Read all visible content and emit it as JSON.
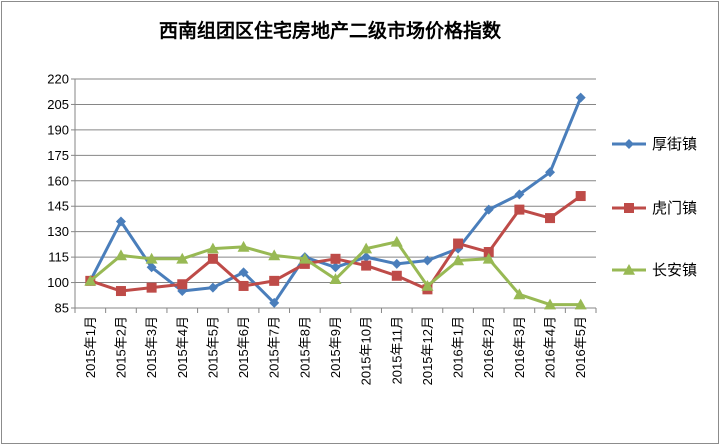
{
  "chart_data": {
    "type": "line",
    "title": "西南组团区住宅房地产二级市场价格指数",
    "xlabel": "",
    "ylabel": "",
    "ylim": [
      85,
      220
    ],
    "yticks": [
      85,
      100,
      115,
      130,
      145,
      160,
      175,
      190,
      205,
      220
    ],
    "grid": true,
    "legend_position": "right",
    "categories": [
      "2015年1月",
      "2015年2月",
      "2015年3月",
      "2015年4月",
      "2015年5月",
      "2015年6月",
      "2015年7月",
      "2015年8月",
      "2015年9月",
      "2015年10月",
      "2015年11月",
      "2015年12月",
      "2016年1月",
      "2016年2月",
      "2016年3月",
      "2016年4月",
      "2016年5月"
    ],
    "series": [
      {
        "name": "厚街镇",
        "color": "#4a7ebb",
        "marker": "diamond",
        "values": [
          101,
          136,
          109,
          95,
          97,
          106,
          88,
          115,
          109,
          115,
          111,
          113,
          120,
          143,
          152,
          165,
          209
        ]
      },
      {
        "name": "虎门镇",
        "color": "#be4b48",
        "marker": "square",
        "values": [
          101,
          95,
          97,
          99,
          114,
          98,
          101,
          111,
          114,
          110,
          104,
          96,
          123,
          118,
          143,
          138,
          151
        ]
      },
      {
        "name": "长安镇",
        "color": "#98b954",
        "marker": "triangle",
        "values": [
          101,
          116,
          114,
          114,
          120,
          121,
          116,
          114,
          102,
          120,
          124,
          98,
          113,
          114,
          93,
          87,
          87
        ]
      }
    ]
  }
}
